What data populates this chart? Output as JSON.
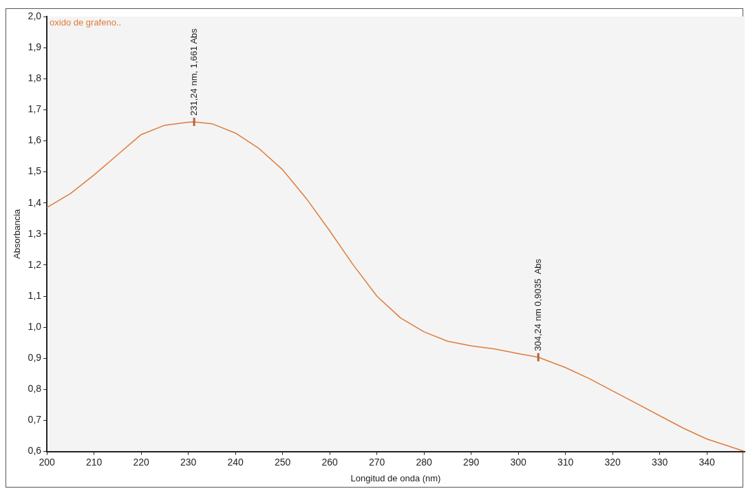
{
  "chart_data": {
    "type": "line",
    "xlabel": "Longitud de onda (nm)",
    "ylabel": "Absorbancia",
    "legend": "top left",
    "marker": "none",
    "line_style": "solid",
    "grid": false,
    "xlim": [
      200,
      348
    ],
    "xticks": [
      200,
      210,
      220,
      230,
      240,
      250,
      260,
      270,
      280,
      290,
      300,
      310,
      320,
      330,
      340
    ],
    "ylim": [
      0.6,
      2.0
    ],
    "yticks": [
      {
        "value": 0.6,
        "label": "0,6"
      },
      {
        "value": 0.7,
        "label": "0,7"
      },
      {
        "value": 0.8,
        "label": "0,8"
      },
      {
        "value": 0.9,
        "label": "0,9"
      },
      {
        "value": 1.0,
        "label": "1,0"
      },
      {
        "value": 1.1,
        "label": "1,1"
      },
      {
        "value": 1.2,
        "label": "1,2"
      },
      {
        "value": 1.3,
        "label": "1,3"
      },
      {
        "value": 1.4,
        "label": "1,4"
      },
      {
        "value": 1.5,
        "label": "1,5"
      },
      {
        "value": 1.6,
        "label": "1,6"
      },
      {
        "value": 1.7,
        "label": "1,7"
      },
      {
        "value": 1.8,
        "label": "1,8"
      },
      {
        "value": 1.9,
        "label": "1,9"
      },
      {
        "value": 2.0,
        "label": "2,0"
      }
    ],
    "x": [
      200,
      205,
      210,
      215,
      220,
      225,
      230,
      231.24,
      235,
      240,
      245,
      250,
      255,
      260,
      265,
      270,
      275,
      280,
      285,
      290,
      295,
      300,
      304.24,
      310,
      315,
      320,
      325,
      330,
      335,
      340,
      345,
      348
    ],
    "series": [
      {
        "name": "oxido de grafeno..",
        "color": "#e07b39",
        "values": [
          1.385,
          1.43,
          1.49,
          1.555,
          1.62,
          1.65,
          1.66,
          1.661,
          1.655,
          1.625,
          1.575,
          1.507,
          1.415,
          1.31,
          1.2,
          1.1,
          1.03,
          0.985,
          0.955,
          0.94,
          0.93,
          0.915,
          0.9035,
          0.87,
          0.835,
          0.795,
          0.755,
          0.715,
          0.675,
          0.64,
          0.615,
          0.6
        ]
      }
    ],
    "annotations": [
      {
        "text": "231,24 nm, 1,661 Abs",
        "x": 231.24,
        "y": 1.661
      },
      {
        "text": "304,24 nm 0,9035  Abs",
        "x": 304.24,
        "y": 0.9035
      }
    ]
  }
}
